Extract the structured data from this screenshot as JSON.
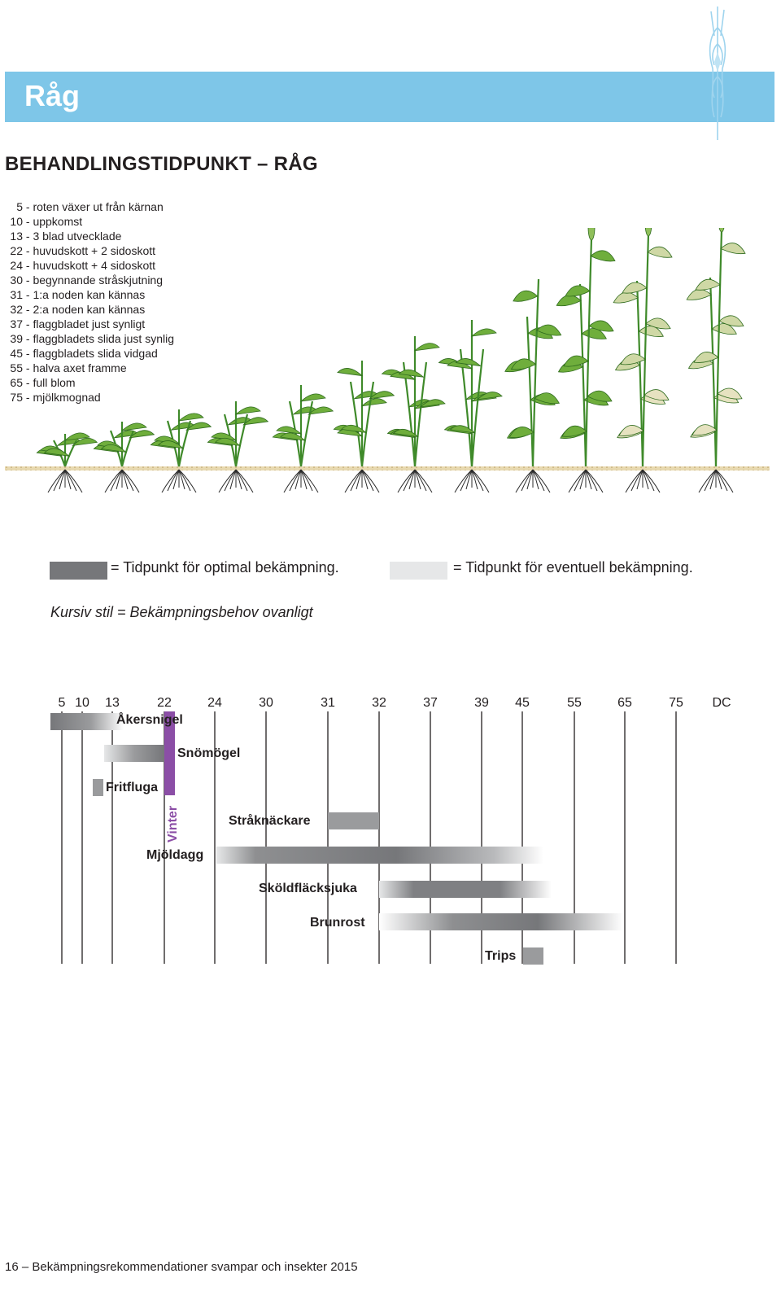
{
  "header": {
    "title": "Råg",
    "accent_color": "#7ec6e8",
    "icon": "wheat-ear-icon"
  },
  "heading": "BEHANDLINGSTIDPUNKT – RÅG",
  "stages": [
    {
      "code": "5",
      "text": " - roten växer ut från kärnan"
    },
    {
      "code": "10",
      "text": " - uppkomst"
    },
    {
      "code": "13",
      "text": " - 3 blad utvecklade"
    },
    {
      "code": "22",
      "text": " - huvudskott + 2 sidoskott"
    },
    {
      "code": "24",
      "text": " - huvudskott + 4 sidoskott"
    },
    {
      "code": "30",
      "text": " - begynnande stråskjutning"
    },
    {
      "code": "31",
      "text": " - 1:a noden kan kännas"
    },
    {
      "code": "32",
      "text": " - 2:a noden kan kännas"
    },
    {
      "code": "37",
      "text": " - flaggbladet just synligt"
    },
    {
      "code": "39",
      "text": " - flaggbladets slida just synlig"
    },
    {
      "code": "45",
      "text": " - flaggbladets slida vidgad"
    },
    {
      "code": "55",
      "text": " - halva axet framme"
    },
    {
      "code": "65",
      "text": " - full blom"
    },
    {
      "code": "75",
      "text": " - mjölkmognad"
    }
  ],
  "legend": {
    "optimal_text": "= Tidpunkt för optimal bekämpning.",
    "optimal_color": "#76777a",
    "possible_text": "= Tidpunkt för eventuell bekämpning.",
    "possible_color": "#e6e7e8",
    "italic_note": "Kursiv stil = Bekämpningsbehov ovanligt"
  },
  "timeline": {
    "axis_labels": [
      "5",
      "10",
      "13",
      "22",
      "24",
      "30",
      "31",
      "32",
      "37",
      "39",
      "45",
      "55",
      "65",
      "75",
      "DC"
    ],
    "pests": [
      {
        "label": "Åkersnigel"
      },
      {
        "label": "Snömögel"
      },
      {
        "label": "Fritfluga"
      },
      {
        "label": "Vinter"
      },
      {
        "label": "Stråknäckare"
      },
      {
        "label": "Mjöldagg"
      },
      {
        "label": "Sköldfläcksjuka"
      },
      {
        "label": "Brunrost"
      },
      {
        "label": "Trips"
      }
    ],
    "vinter_color": "#8b4ea6"
  },
  "footer": "16 – Bekämpningsrekommendationer svampar och insekter 2015"
}
